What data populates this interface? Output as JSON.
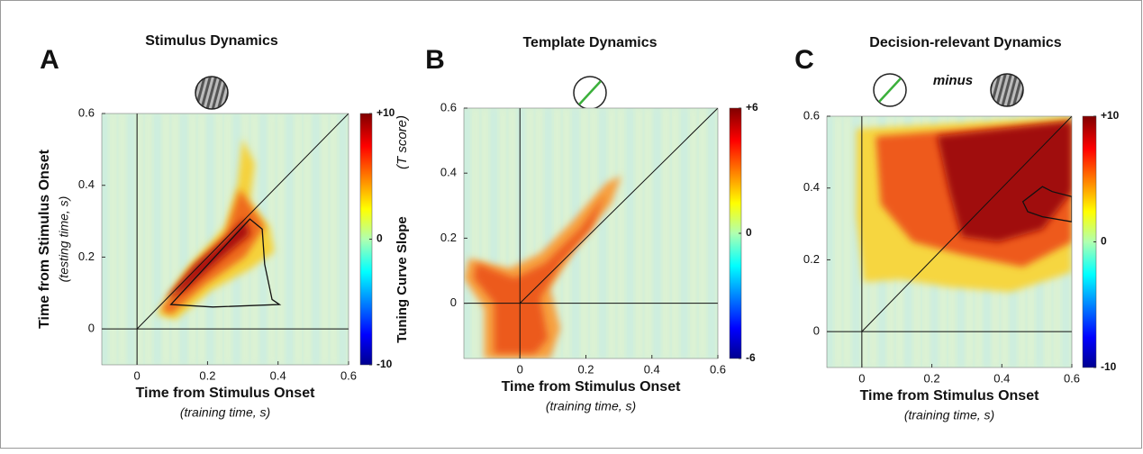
{
  "chart_data": [
    {
      "type": "heatmap",
      "letter": "A",
      "title": "Stimulus Dynamics",
      "xlabel": "Time from Stimulus Onset",
      "xsublabel": "(training time, s)",
      "ylabel": "Time from Stimulus Onset",
      "ysublabel": "(testing time, s)",
      "colorbar_label": "Tuning Curve Slope",
      "colorbar_sublabel": "(T score)",
      "xlim": [
        -0.1,
        0.6
      ],
      "ylim": [
        -0.1,
        0.6
      ],
      "xticks": [
        0,
        0.2,
        0.4,
        0.6
      ],
      "yticks": [
        0,
        0.2,
        0.4,
        0.6
      ],
      "clim": [
        -10,
        10
      ],
      "cticks": [
        {
          "value": 10,
          "label": "+10"
        },
        0,
        -10
      ]
    },
    {
      "type": "heatmap",
      "letter": "B",
      "title": "Template Dynamics",
      "xlabel": "Time from Stimulus Onset",
      "xsublabel": "(training time, s)",
      "xlim": [
        -0.17,
        0.6
      ],
      "ylim": [
        -0.17,
        0.6
      ],
      "xticks": [
        0,
        0.2,
        0.4,
        0.6
      ],
      "yticks": [
        0,
        0.2,
        0.4,
        0.6
      ],
      "clim": [
        -6,
        6
      ],
      "cticks": [
        {
          "value": 6,
          "label": "+6"
        },
        0,
        -6
      ]
    },
    {
      "type": "heatmap",
      "letter": "C",
      "title": "Decision-relevant Dynamics",
      "icon_text": "minus",
      "xlabel": "Time from Stimulus Onset",
      "xsublabel": "(training time, s)",
      "xlim": [
        -0.1,
        0.6
      ],
      "ylim": [
        -0.1,
        0.6
      ],
      "xticks": [
        0,
        0.2,
        0.4,
        0.6
      ],
      "yticks": [
        0,
        0.2,
        0.4,
        0.6
      ],
      "clim": [
        -10,
        10
      ],
      "cticks": [
        {
          "value": 10,
          "label": "+10"
        },
        0,
        -10
      ]
    }
  ]
}
